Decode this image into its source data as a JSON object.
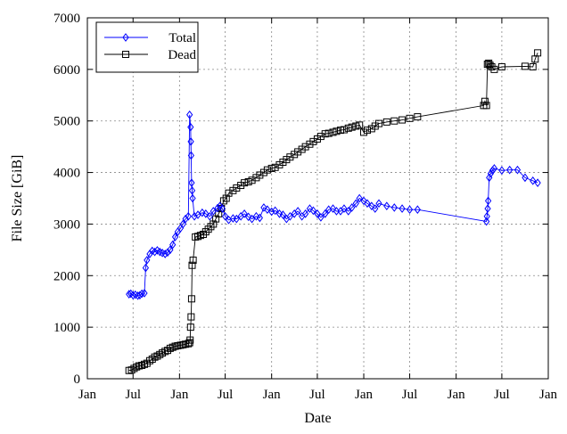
{
  "chart_data": {
    "type": "line",
    "title": "",
    "xlabel": "Date",
    "ylabel": "File Size [GiB]",
    "x_ticks": [
      "Jan",
      "Jul",
      "Jan",
      "Jul",
      "Jan",
      "Jul",
      "Jan",
      "Jul",
      "Jan",
      "Jul",
      "Jan"
    ],
    "x_tick_dates": [
      "2009-01",
      "2009-07",
      "2010-01",
      "2010-07",
      "2011-01",
      "2011-07",
      "2012-01",
      "2012-07",
      "2013-01",
      "2013-07",
      "2014-01"
    ],
    "xlim": [
      "2009-01",
      "2014-01"
    ],
    "ylim": [
      0,
      7000
    ],
    "y_ticks": [
      "0",
      "1000",
      "2000",
      "3000",
      "4000",
      "5000",
      "6000",
      "7000"
    ],
    "grid": true,
    "legend_position": "top-left",
    "series": [
      {
        "name": "Total",
        "color": "#0000ff",
        "marker": "diamond",
        "x": [
          "2009-06-15",
          "2009-06-22",
          "2009-07-01",
          "2009-07-10",
          "2009-07-20",
          "2009-07-28",
          "2009-08-05",
          "2009-08-15",
          "2009-08-20",
          "2009-08-25",
          "2009-09-05",
          "2009-09-15",
          "2009-09-25",
          "2009-10-05",
          "2009-10-15",
          "2009-10-25",
          "2009-11-05",
          "2009-11-15",
          "2009-11-25",
          "2009-12-05",
          "2009-12-15",
          "2009-12-25",
          "2010-01-05",
          "2010-01-15",
          "2010-01-25",
          "2010-02-05",
          "2010-02-10",
          "2010-02-14",
          "2010-02-15",
          "2010-02-16",
          "2010-02-18",
          "2010-02-20",
          "2010-02-22",
          "2010-03-01",
          "2010-03-15",
          "2010-04-01",
          "2010-04-15",
          "2010-05-01",
          "2010-05-15",
          "2010-06-01",
          "2010-06-10",
          "2010-06-20",
          "2010-07-01",
          "2010-07-15",
          "2010-08-01",
          "2010-08-15",
          "2010-09-01",
          "2010-09-15",
          "2010-10-01",
          "2010-10-15",
          "2010-11-01",
          "2010-11-15",
          "2010-12-01",
          "2010-12-15",
          "2011-01-01",
          "2011-01-15",
          "2011-02-01",
          "2011-02-15",
          "2011-03-01",
          "2011-03-15",
          "2011-04-01",
          "2011-04-15",
          "2011-05-01",
          "2011-05-15",
          "2011-06-01",
          "2011-06-15",
          "2011-07-01",
          "2011-07-15",
          "2011-08-01",
          "2011-08-15",
          "2011-09-01",
          "2011-09-15",
          "2011-10-01",
          "2011-10-15",
          "2011-11-01",
          "2011-11-15",
          "2011-12-01",
          "2011-12-15",
          "2012-01-01",
          "2012-01-15",
          "2012-02-01",
          "2012-02-15",
          "2012-03-01",
          "2012-04-01",
          "2012-05-01",
          "2012-06-01",
          "2012-07-01",
          "2012-08-01",
          "2013-05-01",
          "2013-05-03",
          "2013-05-06",
          "2013-05-08",
          "2013-05-12",
          "2013-05-18",
          "2013-05-25",
          "2013-06-01",
          "2013-07-01",
          "2013-08-01",
          "2013-09-01",
          "2013-10-01",
          "2013-11-01",
          "2013-11-20"
        ],
        "values": [
          1640,
          1650,
          1620,
          1630,
          1610,
          1620,
          1650,
          1660,
          2150,
          2300,
          2420,
          2480,
          2460,
          2490,
          2460,
          2440,
          2420,
          2450,
          2500,
          2600,
          2750,
          2850,
          2920,
          3000,
          3100,
          3150,
          5120,
          4880,
          4600,
          4330,
          3800,
          3650,
          3500,
          3150,
          3180,
          3220,
          3200,
          3150,
          3250,
          3310,
          3350,
          3300,
          3150,
          3080,
          3110,
          3100,
          3150,
          3200,
          3140,
          3100,
          3150,
          3120,
          3320,
          3280,
          3240,
          3260,
          3200,
          3180,
          3100,
          3150,
          3200,
          3250,
          3150,
          3200,
          3300,
          3260,
          3200,
          3130,
          3200,
          3280,
          3300,
          3250,
          3250,
          3300,
          3250,
          3320,
          3400,
          3500,
          3450,
          3400,
          3350,
          3300,
          3400,
          3350,
          3320,
          3300,
          3280,
          3280,
          3050,
          3150,
          3300,
          3450,
          3900,
          3980,
          4040,
          4080,
          4040,
          4050,
          4050,
          3900,
          3840,
          3800
        ]
      },
      {
        "name": "Dead",
        "color": "#000000",
        "marker": "square",
        "x": [
          "2009-06-15",
          "2009-06-25",
          "2009-07-05",
          "2009-07-15",
          "2009-07-25",
          "2009-08-05",
          "2009-08-15",
          "2009-08-25",
          "2009-09-05",
          "2009-09-15",
          "2009-09-25",
          "2009-10-05",
          "2009-10-15",
          "2009-10-25",
          "2009-11-05",
          "2009-11-15",
          "2009-11-25",
          "2009-12-05",
          "2009-12-15",
          "2009-12-25",
          "2010-01-05",
          "2010-01-15",
          "2010-01-25",
          "2010-02-05",
          "2010-02-10",
          "2010-02-12",
          "2010-02-14",
          "2010-02-16",
          "2010-02-18",
          "2010-02-20",
          "2010-02-24",
          "2010-03-05",
          "2010-03-15",
          "2010-03-25",
          "2010-04-05",
          "2010-04-15",
          "2010-04-25",
          "2010-05-05",
          "2010-05-15",
          "2010-05-25",
          "2010-06-05",
          "2010-06-15",
          "2010-06-25",
          "2010-07-05",
          "2010-07-15",
          "2010-08-01",
          "2010-08-15",
          "2010-09-01",
          "2010-09-15",
          "2010-10-01",
          "2010-10-15",
          "2010-11-01",
          "2010-11-15",
          "2010-12-01",
          "2010-12-15",
          "2011-01-01",
          "2011-01-15",
          "2011-02-01",
          "2011-02-15",
          "2011-03-01",
          "2011-03-15",
          "2011-04-01",
          "2011-04-15",
          "2011-05-01",
          "2011-05-15",
          "2011-06-01",
          "2011-06-15",
          "2011-07-01",
          "2011-07-15",
          "2011-08-01",
          "2011-08-15",
          "2011-09-01",
          "2011-09-15",
          "2011-10-01",
          "2011-10-15",
          "2011-11-01",
          "2011-11-15",
          "2011-12-01",
          "2011-12-15",
          "2012-01-01",
          "2012-01-15",
          "2012-02-01",
          "2012-02-15",
          "2012-03-01",
          "2012-04-01",
          "2012-05-01",
          "2012-06-01",
          "2012-07-01",
          "2012-08-01",
          "2013-04-20",
          "2013-04-25",
          "2013-05-01",
          "2013-05-05",
          "2013-05-10",
          "2013-05-15",
          "2013-05-22",
          "2013-06-01",
          "2013-07-01",
          "2013-10-01",
          "2013-11-01",
          "2013-11-10",
          "2013-11-20"
        ],
        "values": [
          160,
          170,
          200,
          230,
          250,
          260,
          280,
          300,
          350,
          380,
          420,
          440,
          470,
          500,
          530,
          550,
          590,
          610,
          630,
          640,
          650,
          660,
          670,
          680,
          700,
          750,
          1000,
          1200,
          1550,
          2200,
          2300,
          2750,
          2760,
          2780,
          2800,
          2850,
          2900,
          2950,
          3000,
          3100,
          3200,
          3300,
          3450,
          3500,
          3600,
          3650,
          3700,
          3750,
          3800,
          3820,
          3850,
          3900,
          3950,
          4000,
          4050,
          4080,
          4100,
          4150,
          4200,
          4250,
          4300,
          4350,
          4400,
          4450,
          4500,
          4550,
          4600,
          4650,
          4700,
          4750,
          4760,
          4780,
          4800,
          4820,
          4830,
          4860,
          4880,
          4900,
          4920,
          4780,
          4820,
          4850,
          4900,
          4950,
          4980,
          5000,
          5020,
          5050,
          5080,
          5300,
          5380,
          5300,
          6100,
          6120,
          6080,
          6050,
          6000,
          6050,
          6060,
          6050,
          6200,
          6320
        ]
      }
    ]
  }
}
